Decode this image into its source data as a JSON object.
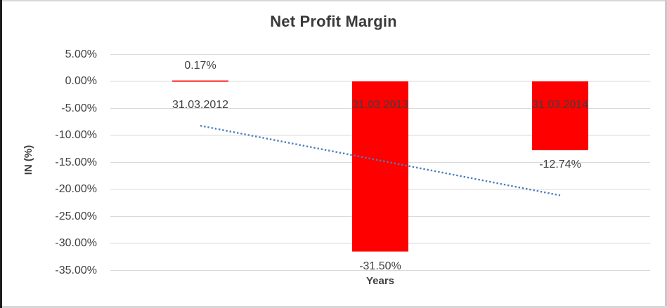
{
  "chart_data": {
    "type": "bar",
    "title": "Net Profit Margin",
    "xlabel": "Years",
    "ylabel": "IN (%)",
    "categories": [
      "31.03.2012",
      "31.03.2013",
      "31.03.2014"
    ],
    "series": [
      {
        "name": "Net Profit Margin",
        "values": [
          0.17,
          -31.5,
          -12.74
        ]
      }
    ],
    "value_labels": [
      "0.17%",
      "-31.50%",
      "-12.74%"
    ],
    "yticks": [
      {
        "value": 5,
        "label": "5.00%"
      },
      {
        "value": 0,
        "label": "0.00%"
      },
      {
        "value": -5,
        "label": "-5.00%"
      },
      {
        "value": -10,
        "label": "-10.00%"
      },
      {
        "value": -15,
        "label": "-15.00%"
      },
      {
        "value": -20,
        "label": "-20.00%"
      },
      {
        "value": -25,
        "label": "-25.00%"
      },
      {
        "value": -30,
        "label": "-30.00%"
      },
      {
        "value": -35,
        "label": "-35.00%"
      }
    ],
    "ylim": [
      -35,
      5
    ],
    "grid": true,
    "legend": "none",
    "trendline": {
      "type": "linear",
      "style": "dotted",
      "start_value": -8.2,
      "end_value": -21.1
    },
    "colors": {
      "bar": "#ff0000",
      "trendline": "#4a7ebb",
      "gridline": "#d9d9d9",
      "text": "#3f3f3f"
    }
  }
}
